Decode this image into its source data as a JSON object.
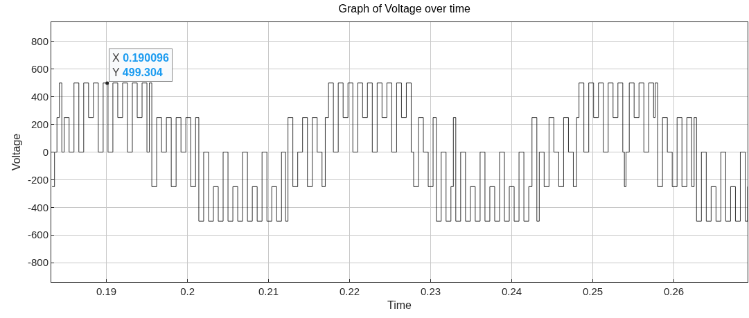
{
  "chart_data": {
    "type": "step",
    "title": "Graph of Voltage over time",
    "xlabel": "Time",
    "ylabel": "Voltage",
    "x": [
      0.1833,
      0.1836,
      0.1839,
      0.1842,
      0.1845,
      0.1848,
      0.1854,
      0.186,
      0.1866,
      0.1872,
      0.1878,
      0.1884,
      0.189,
      0.1896,
      0.190096,
      0.1902,
      0.1908,
      0.1914,
      0.192,
      0.1926,
      0.1932,
      0.1938,
      0.1944,
      0.195,
      0.1953,
      0.1956,
      0.1962,
      0.1968,
      0.1974,
      0.198,
      0.1986,
      0.1992,
      0.1998,
      0.2004,
      0.201,
      0.2014,
      0.202,
      0.2026,
      0.2032,
      0.2038,
      0.2044,
      0.205,
      0.2056,
      0.2062,
      0.2068,
      0.2074,
      0.208,
      0.2086,
      0.2092,
      0.2098,
      0.2104,
      0.211,
      0.2116,
      0.2121,
      0.2124,
      0.213,
      0.2136,
      0.2142,
      0.2148,
      0.2154,
      0.216,
      0.2166,
      0.217,
      0.2174,
      0.218,
      0.2186,
      0.2192,
      0.2198,
      0.2204,
      0.221,
      0.2216,
      0.2222,
      0.2228,
      0.2234,
      0.224,
      0.2246,
      0.2252,
      0.2258,
      0.2264,
      0.227,
      0.2276,
      0.2279,
      0.2285,
      0.2291,
      0.2297,
      0.2303,
      0.2307,
      0.2313,
      0.2319,
      0.2325,
      0.2328,
      0.2331,
      0.2337,
      0.2343,
      0.2349,
      0.2355,
      0.2361,
      0.2367,
      0.2373,
      0.2379,
      0.2385,
      0.2391,
      0.2397,
      0.2403,
      0.2409,
      0.2415,
      0.2421,
      0.2425,
      0.2431,
      0.2434,
      0.244,
      0.2446,
      0.2452,
      0.2458,
      0.2464,
      0.247,
      0.2476,
      0.248,
      0.2483,
      0.2489,
      0.2495,
      0.2501,
      0.2507,
      0.2513,
      0.2519,
      0.2525,
      0.2531,
      0.2537,
      0.2539,
      0.2541,
      0.2545,
      0.2551,
      0.2557,
      0.2563,
      0.2569,
      0.2575,
      0.2577,
      0.258,
      0.2586,
      0.2592,
      0.2598,
      0.2604,
      0.261,
      0.2616,
      0.2622,
      0.2625,
      0.2628,
      0.2634,
      0.264,
      0.2646,
      0.2652,
      0.2658,
      0.2664,
      0.267,
      0.2676,
      0.2682,
      0.2688,
      0.2691
    ],
    "series": [
      {
        "color": "#000000",
        "values": [
          -250,
          0,
          250,
          500,
          0,
          250,
          0,
          500,
          0,
          500,
          250,
          500,
          0,
          500,
          499.304,
          0,
          500,
          250,
          500,
          0,
          500,
          250,
          500,
          0,
          500,
          -250,
          250,
          0,
          250,
          -250,
          250,
          0,
          250,
          -250,
          250,
          -500,
          0,
          -500,
          -250,
          -500,
          0,
          -500,
          -250,
          -500,
          0,
          -500,
          -250,
          -500,
          0,
          -500,
          -250,
          -500,
          0,
          -500,
          250,
          -250,
          0,
          250,
          -250,
          250,
          0,
          -250,
          250,
          500,
          0,
          500,
          250,
          500,
          0,
          500,
          250,
          500,
          0,
          500,
          250,
          500,
          0,
          500,
          250,
          500,
          0,
          -250,
          250,
          0,
          -250,
          250,
          -500,
          0,
          -500,
          -250,
          250,
          -500,
          0,
          -500,
          -250,
          -500,
          0,
          -500,
          -250,
          -500,
          0,
          -500,
          -250,
          -500,
          0,
          -500,
          -250,
          250,
          -500,
          0,
          -250,
          250,
          0,
          -250,
          250,
          0,
          -250,
          250,
          500,
          0,
          500,
          250,
          500,
          0,
          500,
          250,
          500,
          0,
          -250,
          0,
          500,
          250,
          500,
          0,
          500,
          250,
          500,
          -250,
          250,
          0,
          -250,
          250,
          -250,
          250,
          -250,
          250,
          -500,
          0,
          -500,
          -250,
          -500,
          0,
          -500,
          -250,
          -500,
          0,
          -500,
          -250
        ]
      }
    ],
    "xlim": [
      0.1832,
      0.2691
    ],
    "ylim": [
      -940,
      940
    ],
    "xticks": [
      0.19,
      0.2,
      0.21,
      0.22,
      0.23,
      0.24,
      0.25,
      0.26
    ],
    "yticks": [
      -800,
      -600,
      -400,
      -200,
      0,
      200,
      400,
      600,
      800
    ],
    "annotations": [
      {
        "text": "X 0.190096\nY 499.304",
        "x": 0.190096,
        "y": 499.304
      }
    ],
    "grid": true,
    "marker": "none",
    "line_style": "solid"
  }
}
